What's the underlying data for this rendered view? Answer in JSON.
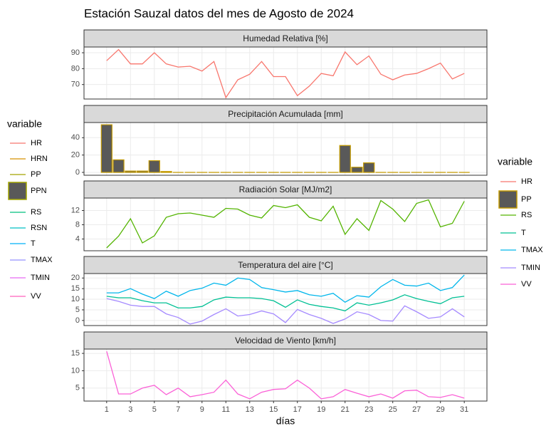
{
  "title": "Estación Sauzal datos del mes de Agosto de 2024",
  "legend_left": {
    "title": "variable",
    "entries": [
      {
        "name": "HR",
        "color": "#F8766D",
        "key": "line"
      },
      {
        "name": "HRN",
        "color": "#D89000",
        "key": "line"
      },
      {
        "name": "PP",
        "color": "#A3A500",
        "key": "line"
      },
      {
        "name": "PPN",
        "color": "#A3A500",
        "fill": "#595959",
        "key": "box"
      },
      {
        "name": "RS",
        "color": "#00BF7D",
        "key": "line"
      },
      {
        "name": "RSN",
        "color": "#00BFC4",
        "key": "line"
      },
      {
        "name": "T",
        "color": "#00B0F6",
        "key": "line"
      },
      {
        "name": "TMAX",
        "color": "#9590FF",
        "key": "line"
      },
      {
        "name": "TMIN",
        "color": "#E76BF3",
        "key": "line"
      },
      {
        "name": "VV",
        "color": "#FF62BC",
        "key": "line"
      }
    ]
  },
  "legend_right": {
    "title": "variable",
    "entries": [
      {
        "name": "HR",
        "color": "#F8766D",
        "key": "line"
      },
      {
        "name": "PP",
        "color": "#C49A00",
        "fill": "#595959",
        "key": "box"
      },
      {
        "name": "RS",
        "color": "#53B400",
        "key": "line"
      },
      {
        "name": "T",
        "color": "#00C094",
        "key": "line"
      },
      {
        "name": "TMAX",
        "color": "#00B6EB",
        "key": "line"
      },
      {
        "name": "TMIN",
        "color": "#A58AFF",
        "key": "line"
      },
      {
        "name": "VV",
        "color": "#FB61D7",
        "key": "line"
      }
    ]
  },
  "chart_data": [
    {
      "type": "line",
      "title": "Humedad Relativa [%]",
      "x": [
        1,
        2,
        3,
        4,
        5,
        6,
        7,
        8,
        9,
        10,
        11,
        12,
        13,
        14,
        15,
        16,
        17,
        18,
        19,
        20,
        21,
        22,
        23,
        24,
        25,
        26,
        27,
        28,
        29,
        30,
        31
      ],
      "series": [
        {
          "name": "HR",
          "color": "#F8766D",
          "values": [
            85,
            92,
            83,
            83,
            90,
            83,
            81,
            81.5,
            78.5,
            84.5,
            61.8,
            73,
            76.5,
            84.5,
            75,
            75,
            63,
            69,
            77,
            75.5,
            90.5,
            82.5,
            88,
            76.5,
            73,
            76,
            77,
            80,
            83.5,
            73.5,
            77
          ]
        }
      ],
      "xlim": [
        -0.9,
        32.9
      ],
      "xticks": [
        1,
        3,
        5,
        7,
        9,
        11,
        13,
        15,
        17,
        19,
        21,
        23,
        25,
        27,
        29,
        31
      ],
      "ylim": [
        60.9,
        93.6
      ],
      "yticks": [
        70,
        80,
        90
      ],
      "grid": true
    },
    {
      "type": "bar",
      "title": "Precipitación Acumulada [mm]",
      "x": [
        1,
        2,
        3,
        4,
        5,
        6,
        7,
        8,
        9,
        10,
        11,
        12,
        13,
        14,
        15,
        16,
        17,
        18,
        19,
        20,
        21,
        22,
        23,
        24,
        25,
        26,
        27,
        28,
        29,
        30,
        31
      ],
      "series": [
        {
          "name": "PP",
          "color": "#595959",
          "border": "#C49A00",
          "values": [
            55,
            14.5,
            1.5,
            1.5,
            13.5,
            1,
            0,
            0,
            0,
            0,
            0,
            0,
            0,
            0,
            0,
            0,
            0,
            0,
            0,
            0,
            31,
            6,
            11,
            0,
            0,
            0,
            0,
            0,
            0,
            0,
            0
          ]
        }
      ],
      "xlim": [
        -0.9,
        32.9
      ],
      "xticks": [
        1,
        3,
        5,
        7,
        9,
        11,
        13,
        15,
        17,
        19,
        21,
        23,
        25,
        27,
        29,
        31
      ],
      "ylim": [
        -3.3,
        57.5
      ],
      "yticks": [
        0,
        20,
        40
      ],
      "grid": true
    },
    {
      "type": "line",
      "title": "Radiación Solar [MJ/m2]",
      "x": [
        1,
        2,
        3,
        4,
        5,
        6,
        7,
        8,
        9,
        10,
        11,
        12,
        13,
        14,
        15,
        16,
        17,
        18,
        19,
        20,
        21,
        22,
        23,
        24,
        25,
        26,
        27,
        28,
        29,
        30,
        31
      ],
      "series": [
        {
          "name": "RS",
          "color": "#53B400",
          "values": [
            1.5,
            4.8,
            9.7,
            2.9,
            4.9,
            10.1,
            11.1,
            11.3,
            10.7,
            10.1,
            12.6,
            12.4,
            10.7,
            9.9,
            13.4,
            12.8,
            13.6,
            10.1,
            9.1,
            13.2,
            5.3,
            9.7,
            6.4,
            14.8,
            12.4,
            8.9,
            14.0,
            15.0,
            7.4,
            8.4,
            14.6
          ]
        }
      ],
      "xlim": [
        -0.9,
        32.9
      ],
      "xticks": [
        1,
        3,
        5,
        7,
        9,
        11,
        13,
        15,
        17,
        19,
        21,
        23,
        25,
        27,
        29,
        31
      ],
      "ylim": [
        0.7,
        15.5
      ],
      "yticks": [
        4,
        8,
        12
      ],
      "grid": true
    },
    {
      "type": "line",
      "title": "Temperatura del aire [°C]",
      "x": [
        1,
        2,
        3,
        4,
        5,
        6,
        7,
        8,
        9,
        10,
        11,
        12,
        13,
        14,
        15,
        16,
        17,
        18,
        19,
        20,
        21,
        22,
        23,
        24,
        25,
        26,
        27,
        28,
        29,
        30,
        31
      ],
      "series": [
        {
          "name": "T",
          "color": "#00C094",
          "values": [
            11.4,
            10.7,
            10.7,
            9.3,
            8.3,
            8.3,
            5.9,
            5.9,
            6.6,
            9.7,
            11,
            10.7,
            10.7,
            10.3,
            9.3,
            6.2,
            9.7,
            7.6,
            6.6,
            5.9,
            4.5,
            8.3,
            7.2,
            8.3,
            9.7,
            12.1,
            10.3,
            9,
            7.9,
            10.7,
            11.4
          ]
        },
        {
          "name": "TMAX",
          "color": "#00B6EB",
          "values": [
            13,
            13,
            15,
            12.4,
            10.3,
            13.8,
            11.4,
            14.1,
            15.2,
            17.6,
            16.6,
            20,
            19.3,
            15.5,
            14.5,
            13.4,
            14.1,
            12.1,
            11.4,
            12.8,
            8.6,
            11.7,
            11,
            15.9,
            19.3,
            16.6,
            16.2,
            17.6,
            14.1,
            15.5,
            21.4
          ]
        },
        {
          "name": "TMIN",
          "color": "#A58AFF",
          "values": [
            10.3,
            9,
            7.2,
            6.6,
            6.6,
            3.1,
            1.4,
            -1.7,
            -0.3,
            2.8,
            5.5,
            2.1,
            2.8,
            4.5,
            3.1,
            -1,
            5.2,
            2.8,
            1,
            -1.4,
            0.7,
            4.1,
            2.8,
            0,
            -0.3,
            6.9,
            4.1,
            1,
            1.7,
            5.5,
            1.7
          ]
        }
      ],
      "xlim": [
        -0.9,
        32.9
      ],
      "xticks": [
        1,
        3,
        5,
        7,
        9,
        11,
        13,
        15,
        17,
        19,
        21,
        23,
        25,
        27,
        29,
        31
      ],
      "ylim": [
        -2.4,
        22.1
      ],
      "yticks": [
        0,
        5,
        10,
        15,
        20
      ],
      "grid": true
    },
    {
      "type": "line",
      "title": "Velocidad de Viento [km/h]",
      "xlabel": "días",
      "x": [
        1,
        2,
        3,
        4,
        5,
        6,
        7,
        8,
        9,
        10,
        11,
        12,
        13,
        14,
        15,
        16,
        17,
        18,
        19,
        20,
        21,
        22,
        23,
        24,
        25,
        26,
        27,
        28,
        29,
        30,
        31
      ],
      "series": [
        {
          "name": "VV",
          "color": "#FB61D7",
          "values": [
            15.6,
            3.3,
            3.3,
            5,
            5.8,
            3.1,
            5,
            2.5,
            3.1,
            3.8,
            7.3,
            3.3,
            1.9,
            3.8,
            4.6,
            4.8,
            7.3,
            5,
            1.9,
            2.5,
            4.6,
            3.5,
            2.5,
            3.3,
            2.1,
            4.2,
            4.4,
            2.5,
            2.3,
            3.1,
            2.1
          ]
        }
      ],
      "xlim": [
        -0.9,
        32.9
      ],
      "xticks": [
        1,
        3,
        5,
        7,
        9,
        11,
        13,
        15,
        17,
        19,
        21,
        23,
        25,
        27,
        29,
        31
      ],
      "ylim": [
        1.25,
        16.25
      ],
      "yticks": [
        5,
        10,
        15
      ],
      "grid": true
    }
  ]
}
